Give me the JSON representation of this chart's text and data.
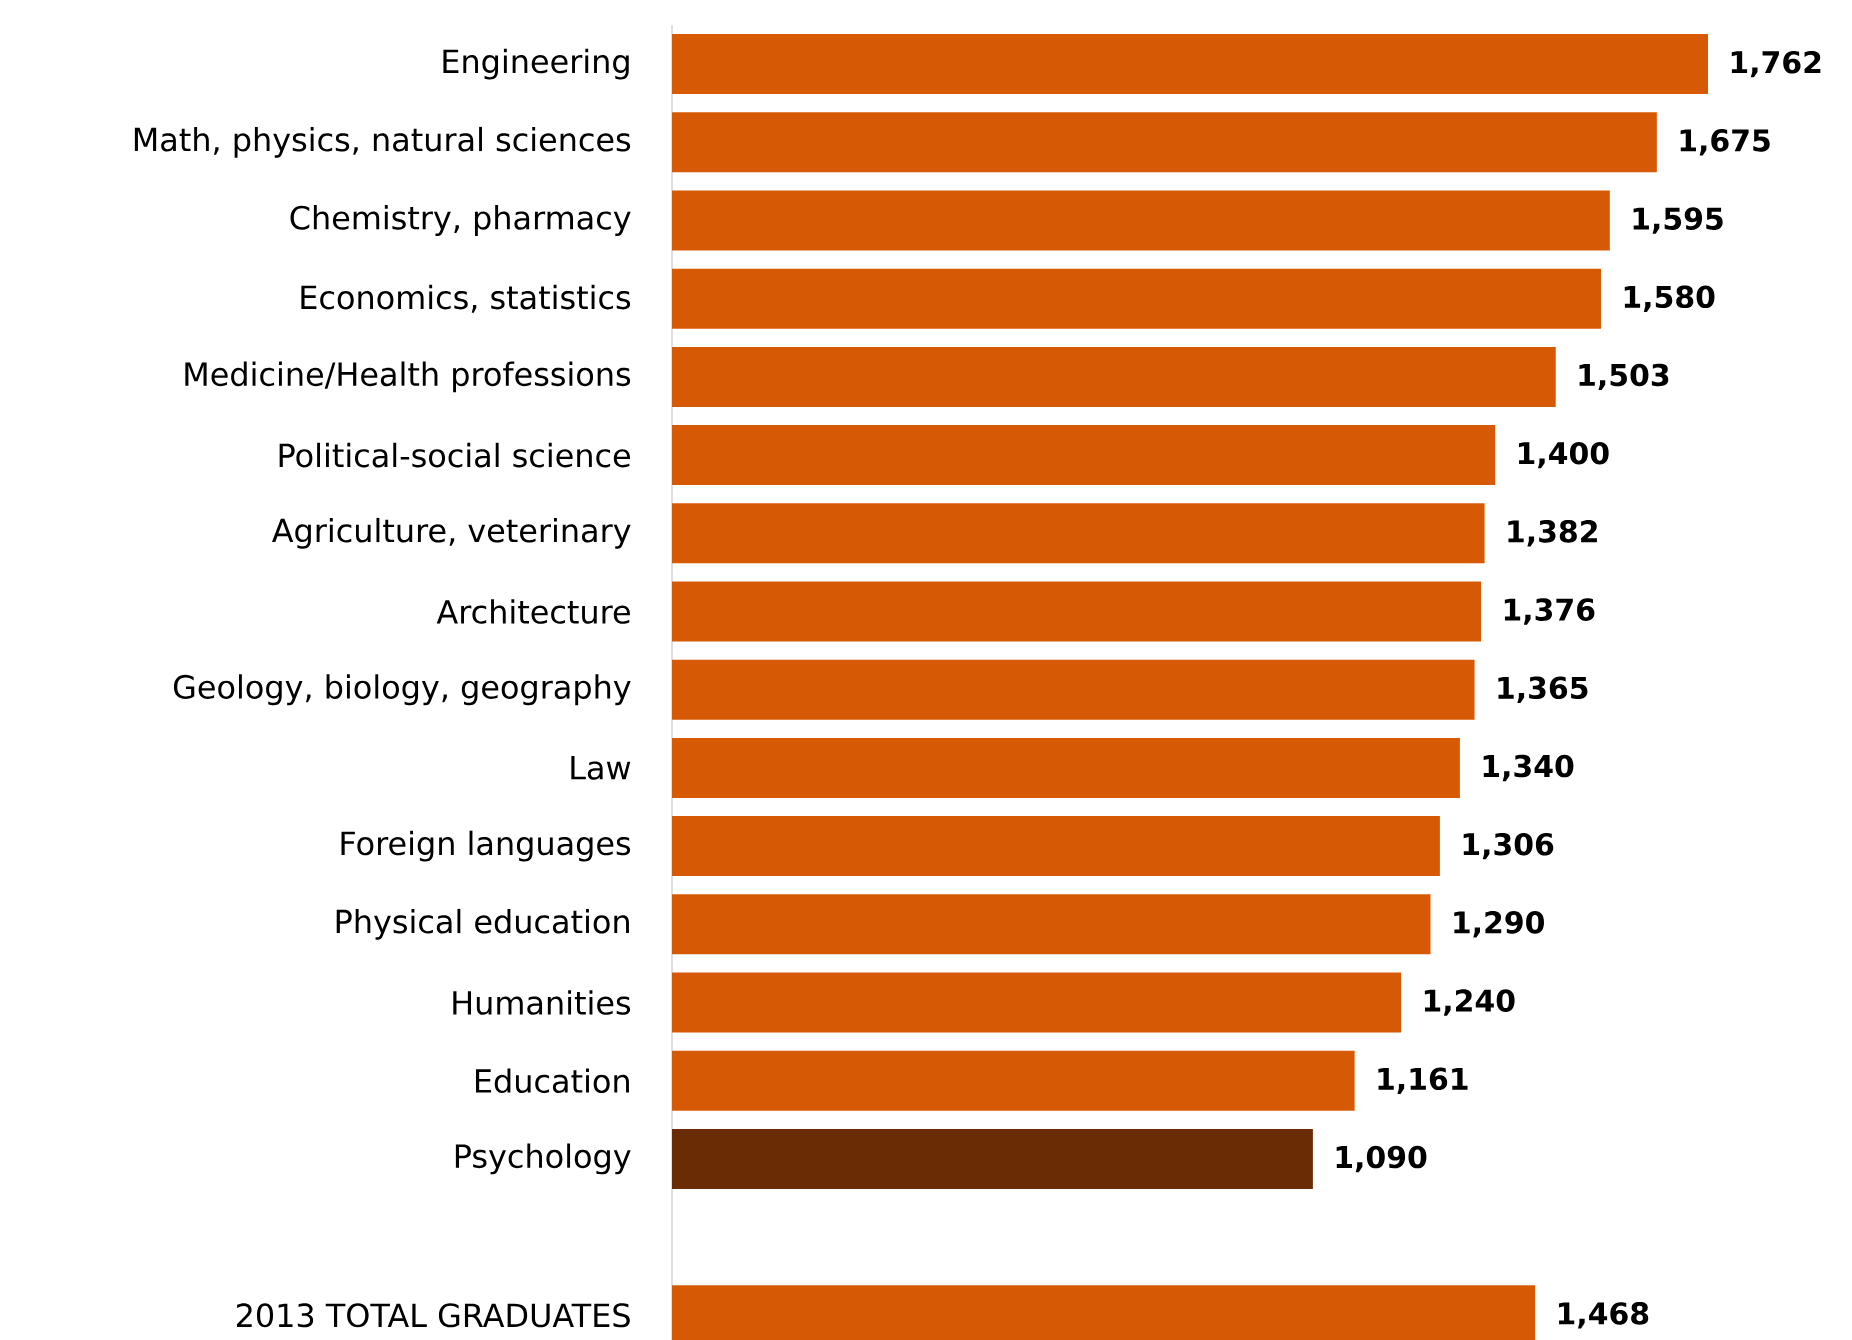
{
  "chart_data": {
    "type": "bar",
    "orientation": "horizontal",
    "categories": [
      "Engineering",
      "Math, physics, natural sciences",
      "Chemistry, pharmacy",
      "Economics, statistics",
      "Medicine/Health professions",
      "Political-social science",
      "Agriculture, veterinary",
      "Architecture",
      "Geology, biology, geography",
      "Law",
      "Foreign languages",
      "Physical education",
      "Humanities",
      "Education",
      "Psychology",
      null,
      "2013 TOTAL GRADUATES"
    ],
    "values": [
      1762,
      1675,
      1595,
      1580,
      1503,
      1400,
      1382,
      1376,
      1365,
      1340,
      1306,
      1290,
      1240,
      1161,
      1090,
      null,
      1468
    ],
    "colors": [
      "#d65a06",
      "#d65a06",
      "#d65a06",
      "#d65a06",
      "#d65a06",
      "#d65a06",
      "#d65a06",
      "#d65a06",
      "#d65a06",
      "#d65a06",
      "#d65a06",
      "#d65a06",
      "#d65a06",
      "#d65a06",
      "#6a2c05",
      null,
      "#d65a06"
    ],
    "value_labels": [
      "1,762",
      "1,675",
      "1,595",
      "1,580",
      "1,503",
      "1,400",
      "1,382",
      "1,376",
      "1,365",
      "1,340",
      "1,306",
      "1,290",
      "1,240",
      "1,161",
      "1,090",
      null,
      "1,468"
    ],
    "tick_labels": "y"
  }
}
